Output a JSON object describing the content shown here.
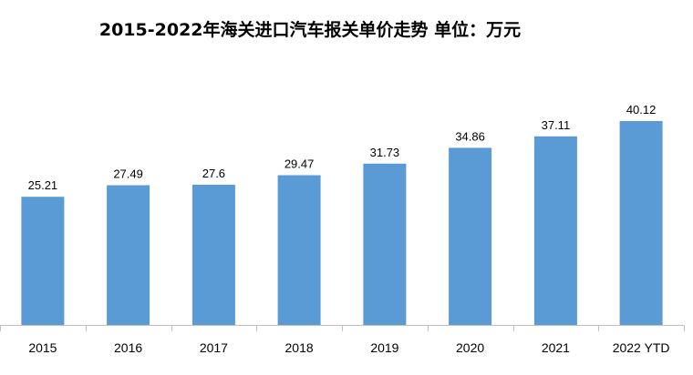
{
  "chart_data": {
    "type": "bar",
    "title": "2015-2022年海关进口汽车报关单价走势   单位：万元",
    "categories": [
      "2015",
      "2016",
      "2017",
      "2018",
      "2019",
      "2020",
      "2021",
      "2022 YTD"
    ],
    "series": [
      {
        "values": [
          25.21,
          27.49,
          27.6,
          29.47,
          31.73,
          34.86,
          37.11,
          40.12
        ],
        "labels": [
          "25.21",
          "27.49",
          "27.6",
          "29.47",
          "31.73",
          "34.86",
          "37.11",
          "40.12"
        ]
      }
    ],
    "ylim": [
      0,
      40.12
    ],
    "grid": false,
    "legend": "none",
    "colors": {
      "bar": "#5b9bd5",
      "axis": "#bfbfbf"
    }
  }
}
